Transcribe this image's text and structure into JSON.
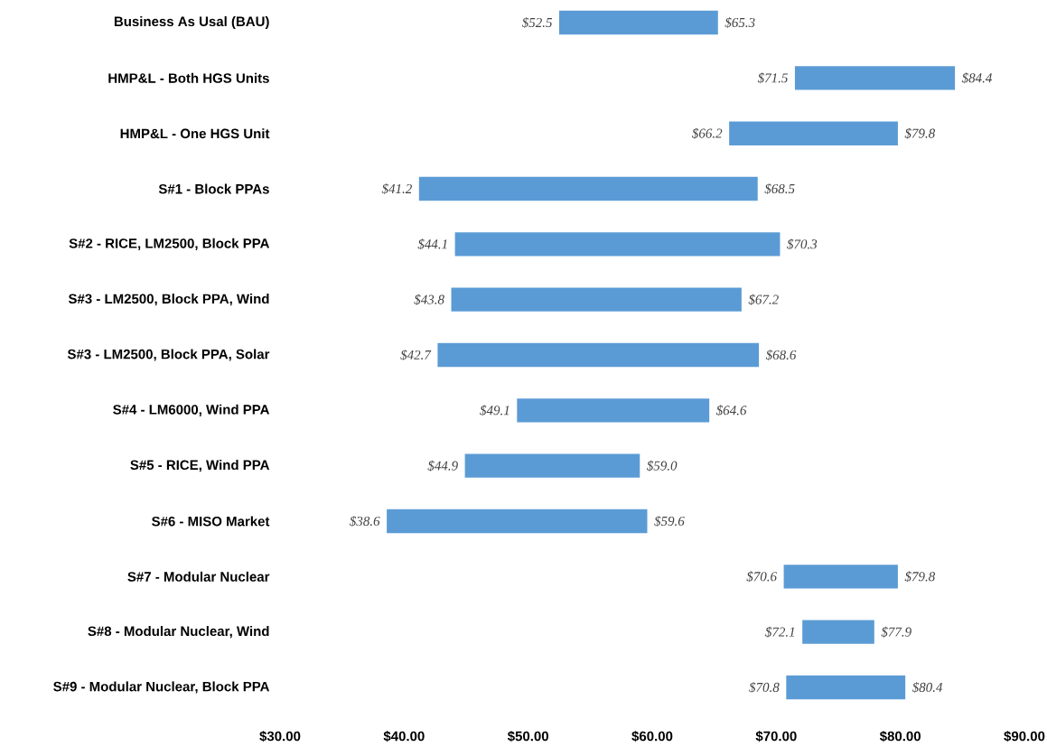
{
  "chart_data": {
    "type": "bar",
    "orientation": "horizontal",
    "color": "#5b9bd5",
    "categories": [
      "Business As Usal (BAU)",
      "HMP&L - Both HGS Units",
      "HMP&L - One HGS Unit",
      "S#1 - Block PPAs",
      "S#2 - RICE, LM2500, Block PPA",
      "S#3 - LM2500, Block PPA, Wind",
      "S#3 - LM2500, Block PPA, Solar",
      "S#4 - LM6000, Wind PPA",
      "S#5 - RICE, Wind PPA",
      "S#6 - MISO Market",
      "S#7 - Modular Nuclear",
      "S#8 - Modular Nuclear, Wind",
      "S#9 - Modular Nuclear, Block PPA"
    ],
    "base": [
      52.5,
      71.5,
      66.2,
      41.2,
      44.1,
      43.8,
      42.7,
      49.1,
      44.9,
      38.6,
      70.6,
      72.1,
      70.8
    ],
    "values": [
      12.8,
      12.9,
      13.6,
      27.3,
      26.2,
      23.4,
      25.9,
      15.5,
      14.1,
      21.0,
      9.2,
      5.8,
      9.6
    ],
    "xlim": [
      30,
      90
    ],
    "xticks": [
      {
        "value": 30,
        "label": "$30.00"
      },
      {
        "value": 40,
        "label": "$40.00"
      },
      {
        "value": 50,
        "label": "$50.00"
      },
      {
        "value": 60,
        "label": "$60.00"
      },
      {
        "value": 70,
        "label": "$70.00"
      },
      {
        "value": 80,
        "label": "$80.00"
      },
      {
        "value": 90,
        "label": "$90.00"
      }
    ],
    "annotations": [
      {
        "text": "$52.5",
        "x": 52.5,
        "y": "Business As Usal (BAU)"
      },
      {
        "text": "$65.3",
        "x": 65.3,
        "y": "Business As Usal (BAU)"
      },
      {
        "text": "$71.5",
        "x": 71.5,
        "y": "HMP&L - Both HGS Units"
      },
      {
        "text": "$84.4",
        "x": 84.4,
        "y": "HMP&L - Both HGS Units"
      },
      {
        "text": "$66.2",
        "x": 66.2,
        "y": "HMP&L - One HGS Unit"
      },
      {
        "text": "$79.8",
        "x": 79.8,
        "y": "HMP&L - One HGS Unit"
      },
      {
        "text": "$41.2",
        "x": 41.2,
        "y": "S#1 - Block PPAs"
      },
      {
        "text": "$68.5",
        "x": 68.5,
        "y": "S#1 - Block PPAs"
      },
      {
        "text": "$44.1",
        "x": 44.1,
        "y": "S#2 - RICE, LM2500, Block PPA"
      },
      {
        "text": "$70.3",
        "x": 70.3,
        "y": "S#2 - RICE, LM2500, Block PPA"
      },
      {
        "text": "$43.8",
        "x": 43.8,
        "y": "S#3 - LM2500, Block PPA, Wind"
      },
      {
        "text": "$67.2",
        "x": 67.2,
        "y": "S#3 - LM2500, Block PPA, Wind"
      },
      {
        "text": "$42.7",
        "x": 42.7,
        "y": "S#3 - LM2500, Block PPA, Solar"
      },
      {
        "text": "$68.6",
        "x": 68.6,
        "y": "S#3 - LM2500, Block PPA, Solar"
      },
      {
        "text": "$49.1",
        "x": 49.1,
        "y": "S#4 - LM6000, Wind PPA"
      },
      {
        "text": "$64.6",
        "x": 64.6,
        "y": "S#4 - LM6000, Wind PPA"
      },
      {
        "text": "$44.9",
        "x": 44.9,
        "y": "S#5 - RICE, Wind PPA"
      },
      {
        "text": "$59.0",
        "x": 59.0,
        "y": "S#5 - RICE, Wind PPA"
      },
      {
        "text": "$38.6",
        "x": 38.6,
        "y": "S#6 - MISO Market"
      },
      {
        "text": "$59.6",
        "x": 59.6,
        "y": "S#6 - MISO Market"
      },
      {
        "text": "$70.6",
        "x": 70.6,
        "y": "S#7 - Modular Nuclear"
      },
      {
        "text": "$79.8",
        "x": 79.8,
        "y": "S#7 - Modular Nuclear"
      },
      {
        "text": "$72.1",
        "x": 72.1,
        "y": "S#8 - Modular Nuclear, Wind"
      },
      {
        "text": "$77.9",
        "x": 77.9,
        "y": "S#8 - Modular Nuclear, Wind"
      },
      {
        "text": "$70.8",
        "x": 70.8,
        "y": "S#9 - Modular Nuclear, Block PPA"
      },
      {
        "text": "$80.4",
        "x": 80.4,
        "y": "S#9 - Modular Nuclear, Block PPA"
      }
    ]
  }
}
